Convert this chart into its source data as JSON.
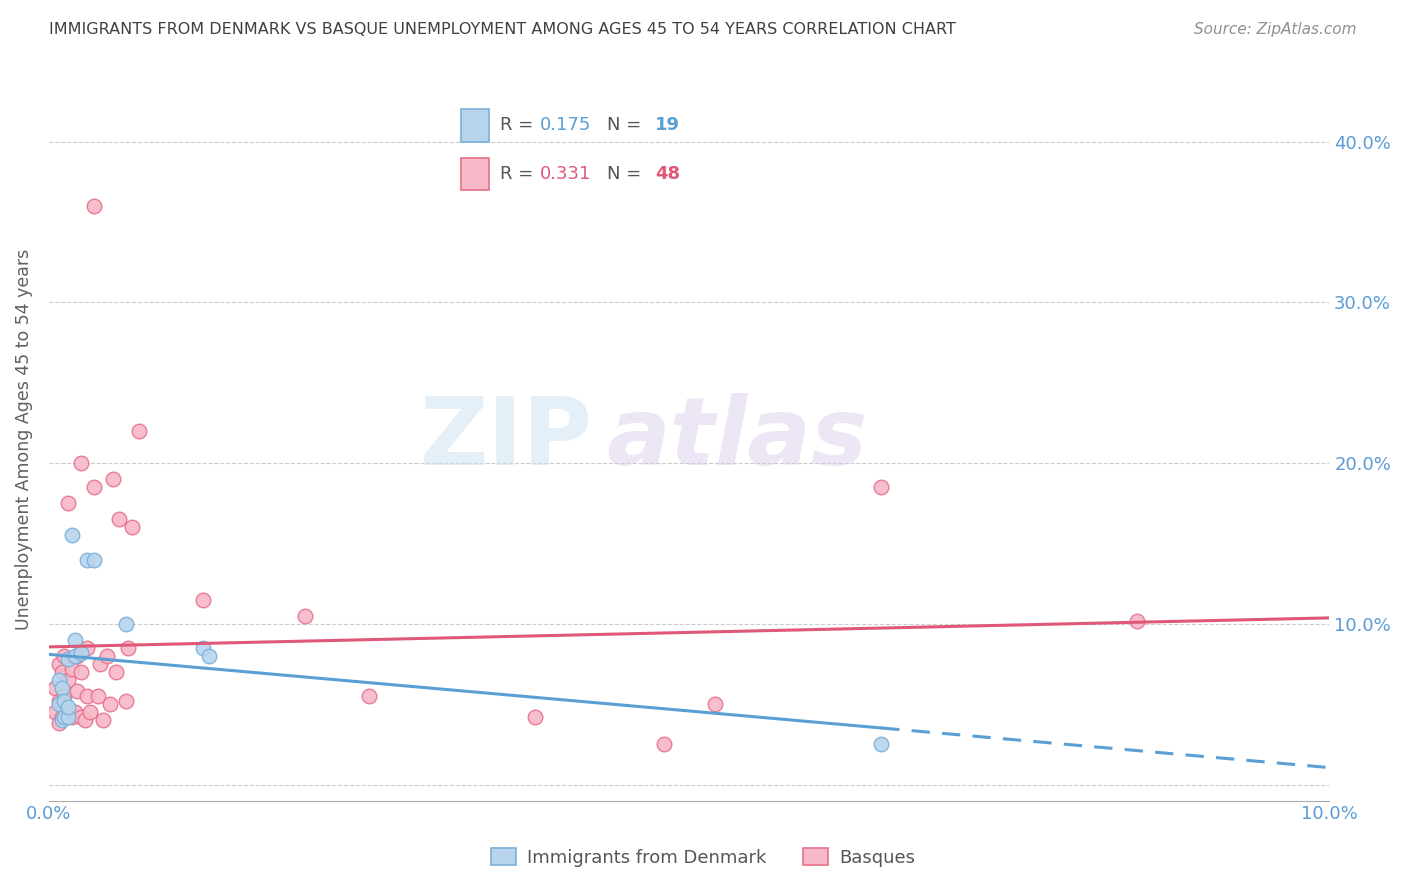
{
  "title": "IMMIGRANTS FROM DENMARK VS BASQUE UNEMPLOYMENT AMONG AGES 45 TO 54 YEARS CORRELATION CHART",
  "source": "Source: ZipAtlas.com",
  "ylabel": "Unemployment Among Ages 45 to 54 years",
  "xlim": [
    0.0,
    0.1
  ],
  "ylim": [
    -0.01,
    0.44
  ],
  "yticks": [
    0.0,
    0.1,
    0.2,
    0.3,
    0.4
  ],
  "ytick_labels": [
    "",
    "10.0%",
    "20.0%",
    "30.0%",
    "40.0%"
  ],
  "xticks": [
    0.0,
    0.02,
    0.04,
    0.06,
    0.08,
    0.1
  ],
  "xtick_labels": [
    "0.0%",
    "",
    "",
    "",
    "",
    "10.0%"
  ],
  "color_blue_fill": "#b8d4ec",
  "color_pink_fill": "#f7b8c8",
  "color_blue_edge": "#7ab0d8",
  "color_pink_edge": "#e8708a",
  "color_blue_line": "#5a9fd4",
  "color_pink_line": "#e05878",
  "color_axis_labels": "#5b9bd5",
  "color_title": "#404040",
  "watermark_zip": "ZIP",
  "watermark_atlas": "atlas",
  "denmark_x": [
    0.0008,
    0.0008,
    0.001,
    0.001,
    0.0012,
    0.0012,
    0.0015,
    0.0015,
    0.0015,
    0.0018,
    0.002,
    0.002,
    0.0025,
    0.003,
    0.0035,
    0.006,
    0.012,
    0.0125,
    0.065
  ],
  "denmark_y": [
    0.05,
    0.065,
    0.04,
    0.06,
    0.042,
    0.052,
    0.042,
    0.048,
    0.078,
    0.155,
    0.08,
    0.09,
    0.082,
    0.14,
    0.14,
    0.1,
    0.085,
    0.08,
    0.025
  ],
  "basque_x": [
    0.0005,
    0.0005,
    0.0008,
    0.0008,
    0.0008,
    0.001,
    0.001,
    0.001,
    0.0012,
    0.0012,
    0.0012,
    0.0015,
    0.0015,
    0.0015,
    0.0018,
    0.0018,
    0.002,
    0.0022,
    0.0022,
    0.0025,
    0.0025,
    0.0025,
    0.0028,
    0.003,
    0.003,
    0.0032,
    0.0035,
    0.0035,
    0.0038,
    0.004,
    0.0042,
    0.0045,
    0.0048,
    0.005,
    0.0052,
    0.0055,
    0.006,
    0.0062,
    0.0065,
    0.007,
    0.012,
    0.02,
    0.025,
    0.038,
    0.048,
    0.052,
    0.065,
    0.085
  ],
  "basque_y": [
    0.045,
    0.06,
    0.038,
    0.052,
    0.075,
    0.042,
    0.05,
    0.07,
    0.042,
    0.055,
    0.08,
    0.045,
    0.065,
    0.175,
    0.042,
    0.072,
    0.045,
    0.058,
    0.08,
    0.042,
    0.07,
    0.2,
    0.04,
    0.055,
    0.085,
    0.045,
    0.185,
    0.36,
    0.055,
    0.075,
    0.04,
    0.08,
    0.05,
    0.19,
    0.07,
    0.165,
    0.052,
    0.085,
    0.16,
    0.22,
    0.115,
    0.105,
    0.055,
    0.042,
    0.025,
    0.05,
    0.185,
    0.102
  ]
}
